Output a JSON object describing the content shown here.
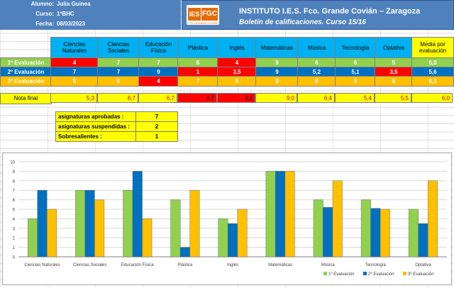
{
  "header": {
    "alumno_label": "Alumno:",
    "alumno": "Julia Guinea",
    "curso_label": "Curso:",
    "curso": "1ºBHC",
    "fecha_label": "Fecha:",
    "fecha": "08/03/2023",
    "logo_ies": "IES",
    "logo_fgc": "FGC",
    "logo_sub": "FCO GRANDE COVIÁN",
    "title": "INSTITUTO I.E.S. Fco. Grande Covián – Zaragoza",
    "subtitle": "Boletín de calificaciones. Curso 15/16"
  },
  "table": {
    "subjects": [
      "Ciencias Naturales",
      "Ciencias Sociales",
      "Educación Física",
      "Plástica",
      "Inglés",
      "Matemáticas",
      "Música",
      "Tecnología",
      "Optativa"
    ],
    "media_header": "Media por evaluación",
    "rows": [
      {
        "label": "1º Evaluación",
        "values": [
          "4",
          "7",
          "7",
          "6",
          "4",
          "9",
          "6",
          "6",
          "5"
        ],
        "media": "6,0"
      },
      {
        "label": "2º Evaluación",
        "values": [
          "7",
          "7",
          "9",
          "1",
          "3,5",
          "9",
          "5,2",
          "5,1",
          "3,5"
        ],
        "media": "5,6"
      },
      {
        "label": "3º Evaluación",
        "values": [
          "5",
          "6",
          "4",
          "7",
          "5",
          "9",
          "8",
          "5",
          "8"
        ],
        "media": "6,3"
      }
    ],
    "nota_label": "Nota final",
    "nota_values": [
      "5,3",
      "6,7",
      "6,7",
      "4,7",
      "4,2",
      "9,0",
      "6,4",
      "5,4",
      "5,5"
    ],
    "nota_media": "6,0"
  },
  "summary": [
    {
      "label": "asignaturas aprobadas :",
      "value": "7"
    },
    {
      "label": "asignaturas suspendidas :",
      "value": "2"
    },
    {
      "label": "Sobresalientes :",
      "value": "1"
    }
  ],
  "colors": {
    "header_blue": "#4f81bd",
    "subject_header": "#00b0f0",
    "eval1": "#92d050",
    "eval2": "#0070c0",
    "eval3": "#ffc000",
    "fail": "#ff0000",
    "yellow": "#ffff00"
  },
  "chart_data": {
    "type": "bar",
    "categories": [
      "Ciencias Naturales",
      "Ciencias Sociales",
      "Educación Física",
      "Plástica",
      "Inglés",
      "Matemáticas",
      "Música",
      "Tecnología",
      "Optativa"
    ],
    "series": [
      {
        "name": "1º Evaluación",
        "values": [
          4,
          7,
          7,
          6,
          4,
          9,
          6,
          6,
          5
        ],
        "color": "#92d050"
      },
      {
        "name": "2º Evaluación",
        "values": [
          7,
          7,
          9,
          1,
          3.5,
          9,
          5.2,
          5.1,
          3.5
        ],
        "color": "#0070c0"
      },
      {
        "name": "3º Evaluación",
        "values": [
          5,
          6,
          4,
          7,
          5,
          9,
          8,
          5,
          8
        ],
        "color": "#ffc000"
      }
    ],
    "ylim": [
      0,
      10
    ],
    "yticks": [
      "0",
      "1",
      "2",
      "3",
      "4",
      "5",
      "6",
      "7",
      "8",
      "9",
      "10"
    ],
    "grid": true,
    "legend": "bottom-right"
  }
}
